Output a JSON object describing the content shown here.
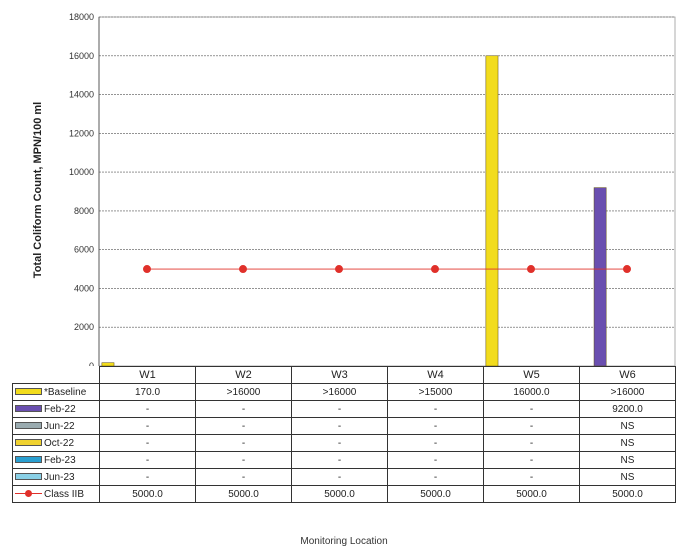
{
  "chart_data": {
    "type": "bar",
    "ylabel": "Total Coliform Count, MPN/100 ml",
    "xlabel": "Monitoring Location",
    "ylim": [
      0,
      18000
    ],
    "yticks": [
      0,
      2000,
      4000,
      6000,
      8000,
      10000,
      12000,
      14000,
      16000,
      18000
    ],
    "grid": true,
    "legend": "data-table",
    "categories": [
      "W1",
      "W2",
      "W3",
      "W4",
      "W5",
      "W6"
    ],
    "series": [
      {
        "name": "Baseline",
        "display_name": "*Baseline",
        "color": "#f2dc1d",
        "values": [
          170,
          16000,
          16000,
          16000,
          16000,
          16000
        ],
        "labels": [
          "170.0",
          ">16000",
          ">16000",
          ">15000",
          "16000.0",
          ">16000"
        ],
        "plotted": [
          true,
          false,
          false,
          false,
          true,
          false
        ]
      },
      {
        "name": "Feb-22",
        "display_name": "Feb-22",
        "color": "#6a4fb0",
        "values": [
          null,
          null,
          null,
          null,
          null,
          9200
        ],
        "labels": [
          "-",
          "-",
          "-",
          "-",
          "-",
          "9200.0"
        ]
      },
      {
        "name": "Jun-22",
        "display_name": "Jun-22",
        "color": "#9aabb0",
        "values": [
          null,
          null,
          null,
          null,
          null,
          null
        ],
        "labels": [
          "-",
          "-",
          "-",
          "-",
          "-",
          "NS"
        ]
      },
      {
        "name": "Oct-22",
        "display_name": "Oct-22",
        "color": "#f0d230",
        "values": [
          null,
          null,
          null,
          null,
          null,
          null
        ],
        "labels": [
          "-",
          "-",
          "-",
          "-",
          "-",
          "NS"
        ]
      },
      {
        "name": "Feb-23",
        "display_name": "Feb-23",
        "color": "#2a9fd0",
        "values": [
          null,
          null,
          null,
          null,
          null,
          null
        ],
        "labels": [
          "-",
          "-",
          "-",
          "-",
          "-",
          "NS"
        ]
      },
      {
        "name": "Jun-23",
        "display_name": "Jun-23",
        "color": "#8ad0e6",
        "values": [
          null,
          null,
          null,
          null,
          null,
          null
        ],
        "labels": [
          "-",
          "-",
          "-",
          "-",
          "-",
          "NS"
        ]
      },
      {
        "name": "Class IIB",
        "display_name": "Class IIB",
        "color": "#e0302a",
        "kind": "line",
        "values": [
          5000,
          5000,
          5000,
          5000,
          5000,
          5000
        ],
        "labels": [
          "5000.0",
          "5000.0",
          "5000.0",
          "5000.0",
          "5000.0",
          "5000.0"
        ]
      }
    ]
  }
}
